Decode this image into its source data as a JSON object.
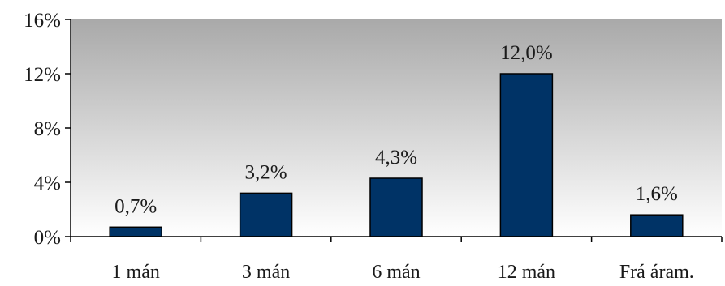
{
  "chart_data": {
    "type": "bar",
    "categories": [
      "1 mán",
      "3 mán",
      "6 mán",
      "12 mán",
      "Frá áram."
    ],
    "values": [
      0.7,
      3.2,
      4.3,
      12.0,
      1.6
    ],
    "value_labels": [
      "0,7%",
      "3,2%",
      "4,3%",
      "12,0%",
      "1,6%"
    ],
    "ylim": [
      0,
      16
    ],
    "yticks": [
      0,
      4,
      8,
      12,
      16
    ],
    "ytick_labels": [
      "0%",
      "4%",
      "8%",
      "12%",
      "16%"
    ],
    "title": "",
    "xlabel": "",
    "ylabel": "",
    "grid": false,
    "legend": "none",
    "colors": {
      "bar": "#003366",
      "bar_edge": "#000000",
      "plot_bg_top": "#a9a9a9",
      "plot_bg_bottom": "#ffffff",
      "axis": "#000000"
    }
  }
}
